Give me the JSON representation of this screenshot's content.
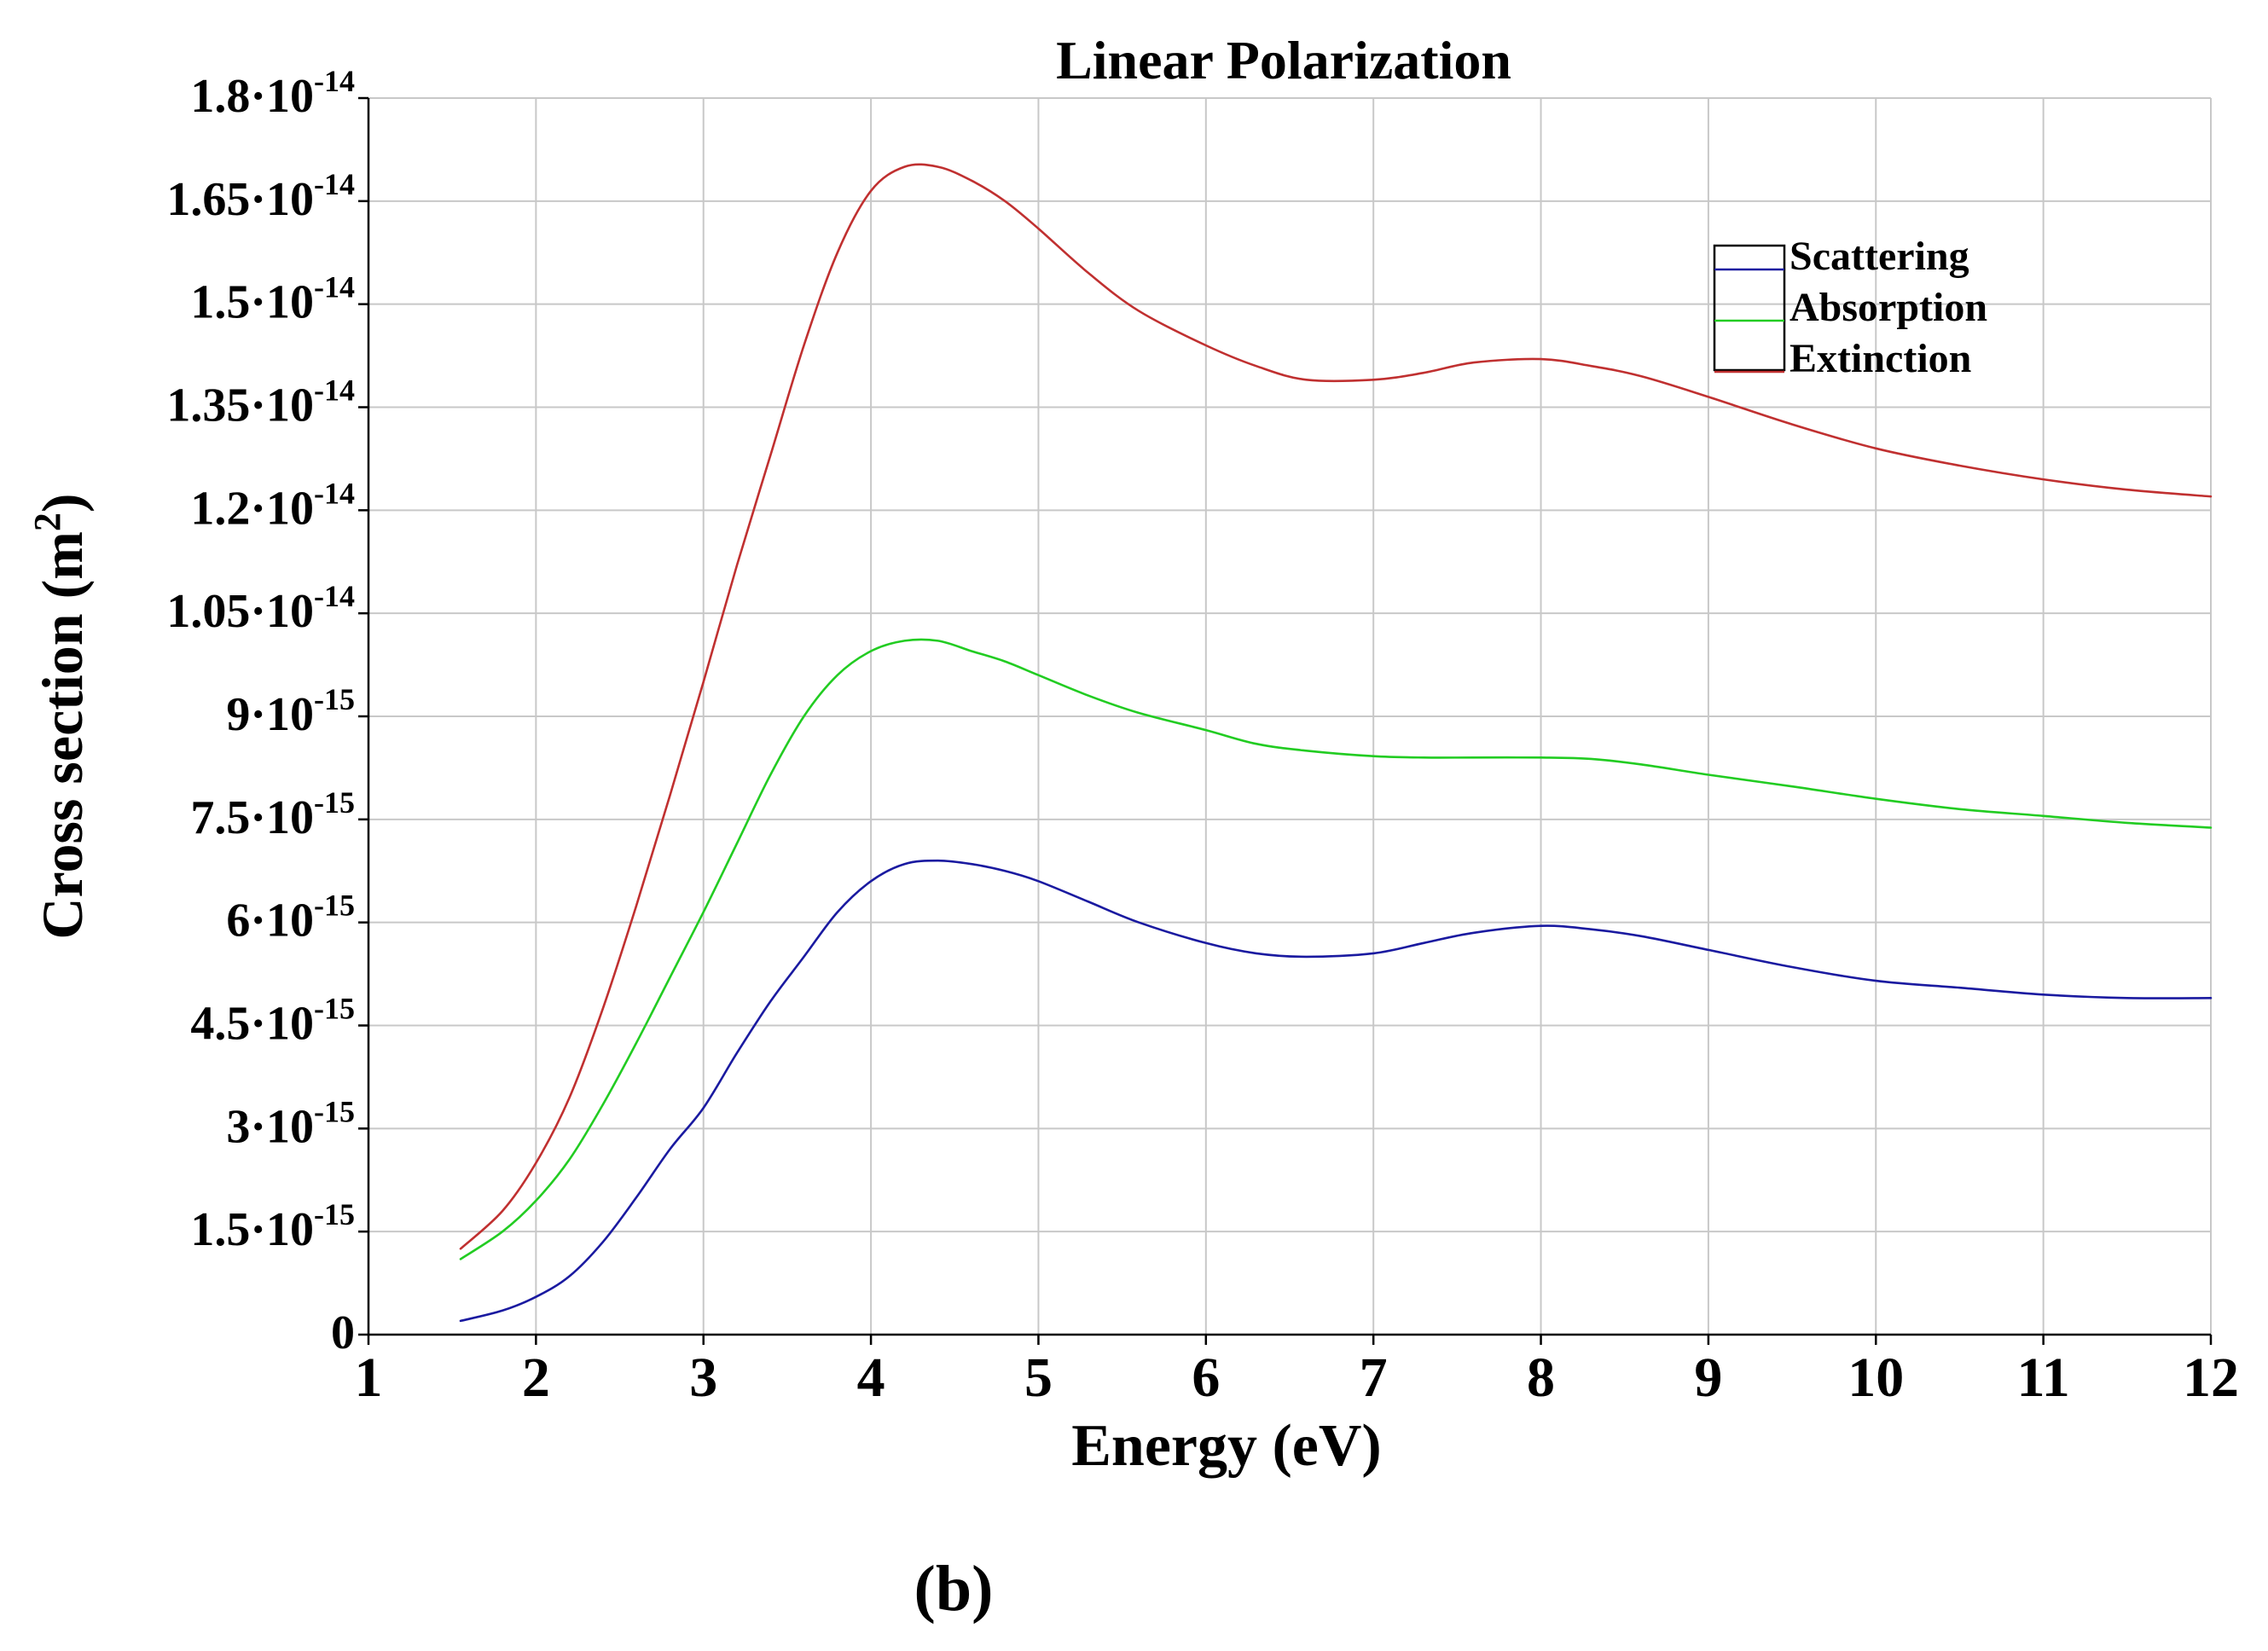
{
  "chart_data": {
    "type": "line",
    "title": "Linear Polarization",
    "xlabel": "Energy (eV)",
    "ylabel": "Cross section (m",
    "ylabel_sup": "2",
    "ylabel_close": ")",
    "xlim": [
      1,
      12
    ],
    "ylim": [
      0,
      1.8e-14
    ],
    "grid": true,
    "legend_position": "top-right",
    "caption": "(b)",
    "x_ticks": [
      {
        "value": 1,
        "label": "1"
      },
      {
        "value": 2,
        "label": "2"
      },
      {
        "value": 3,
        "label": "3"
      },
      {
        "value": 4,
        "label": "4"
      },
      {
        "value": 5,
        "label": "5"
      },
      {
        "value": 6,
        "label": "6"
      },
      {
        "value": 7,
        "label": "7"
      },
      {
        "value": 8,
        "label": "8"
      },
      {
        "value": 9,
        "label": "9"
      },
      {
        "value": 10,
        "label": "10"
      },
      {
        "value": 11,
        "label": "11"
      },
      {
        "value": 12,
        "label": "12"
      }
    ],
    "y_ticks": [
      {
        "value": 0,
        "mantissa": "0",
        "exponent": ""
      },
      {
        "value": 1.5e-15,
        "mantissa": "1.5·10",
        "exponent": "-15"
      },
      {
        "value": 3e-15,
        "mantissa": "3·10",
        "exponent": "-15"
      },
      {
        "value": 4.5e-15,
        "mantissa": "4.5·10",
        "exponent": "-15"
      },
      {
        "value": 6e-15,
        "mantissa": "6·10",
        "exponent": "-15"
      },
      {
        "value": 7.5e-15,
        "mantissa": "7.5·10",
        "exponent": "-15"
      },
      {
        "value": 9e-15,
        "mantissa": "9·10",
        "exponent": "-15"
      },
      {
        "value": 1.05e-14,
        "mantissa": "1.05·10",
        "exponent": "-14"
      },
      {
        "value": 1.2e-14,
        "mantissa": "1.2·10",
        "exponent": "-14"
      },
      {
        "value": 1.35e-14,
        "mantissa": "1.35·10",
        "exponent": "-14"
      },
      {
        "value": 1.5e-14,
        "mantissa": "1.5·10",
        "exponent": "-14"
      },
      {
        "value": 1.65e-14,
        "mantissa": "1.65·10",
        "exponent": "-14"
      },
      {
        "value": 1.8e-14,
        "mantissa": "1.8·10",
        "exponent": "-14"
      }
    ],
    "x": [
      1.55,
      1.8,
      2.0,
      2.2,
      2.4,
      2.6,
      2.8,
      3.0,
      3.2,
      3.4,
      3.6,
      3.8,
      4.0,
      4.2,
      4.4,
      4.6,
      4.8,
      5.0,
      5.3,
      5.6,
      6.0,
      6.3,
      6.6,
      7.0,
      7.3,
      7.6,
      8.0,
      8.3,
      8.6,
      9.0,
      9.5,
      10.0,
      10.5,
      11.0,
      11.5,
      12.0
    ],
    "series": [
      {
        "name": "Scattering",
        "color": "#1a1aa0",
        "values": [
          2e-16,
          3.5e-16,
          5.5e-16,
          8.5e-16,
          1.35e-15,
          2e-15,
          2.7e-15,
          3.3e-15,
          4.1e-15,
          4.85e-15,
          5.5e-15,
          6.15e-15,
          6.6e-15,
          6.85e-15,
          6.9e-15,
          6.85e-15,
          6.75e-15,
          6.6e-15,
          6.3e-15,
          6e-15,
          5.7e-15,
          5.55e-15,
          5.5e-15,
          5.55e-15,
          5.7e-15,
          5.85e-15,
          5.95e-15,
          5.9e-15,
          5.8e-15,
          5.6e-15,
          5.35e-15,
          5.15e-15,
          5.05e-15,
          4.95e-15,
          4.9e-15,
          4.9e-15
        ]
      },
      {
        "name": "Absorption",
        "color": "#22cc22",
        "values": [
          1.1e-15,
          1.5e-15,
          1.95e-15,
          2.55e-15,
          3.35e-15,
          4.25e-15,
          5.2e-15,
          6.15e-15,
          7.15e-15,
          8.15e-15,
          9e-15,
          9.6e-15,
          9.95e-15,
          1.01e-14,
          1.01e-14,
          9.95e-15,
          9.8e-15,
          9.6e-15,
          9.3e-15,
          9.05e-15,
          8.8e-15,
          8.6e-15,
          8.5e-15,
          8.42e-15,
          8.4e-15,
          8.4e-15,
          8.4e-15,
          8.38e-15,
          8.3e-15,
          8.15e-15,
          7.98e-15,
          7.8e-15,
          7.65e-15,
          7.55e-15,
          7.45e-15,
          7.38e-15
        ]
      },
      {
        "name": "Extinction",
        "color": "#c03030",
        "values": [
          1.25e-15,
          1.8e-15,
          2.5e-15,
          3.45e-15,
          4.75e-15,
          6.25e-15,
          7.85e-15,
          9.5e-15,
          1.12e-14,
          1.28e-14,
          1.44e-14,
          1.575e-14,
          1.665e-14,
          1.7e-14,
          1.7e-14,
          1.68e-14,
          1.65e-14,
          1.61e-14,
          1.545e-14,
          1.49e-14,
          1.44e-14,
          1.41e-14,
          1.39e-14,
          1.39e-14,
          1.4e-14,
          1.415e-14,
          1.42e-14,
          1.41e-14,
          1.395e-14,
          1.365e-14,
          1.325e-14,
          1.29e-14,
          1.265e-14,
          1.245e-14,
          1.23e-14,
          1.22e-14
        ]
      }
    ]
  }
}
